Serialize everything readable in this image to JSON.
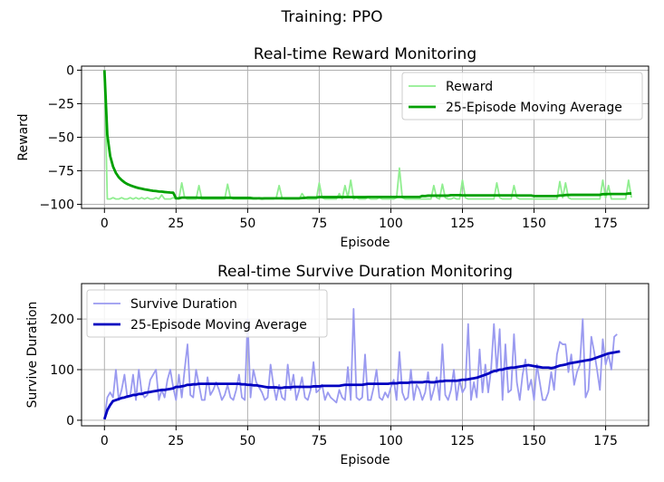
{
  "figure_title": "Training: PPO",
  "chart_data": [
    {
      "type": "line",
      "title": "Real-time Reward Monitoring",
      "xlabel": "Episode",
      "ylabel": "Reward",
      "xlim": [
        -8,
        190
      ],
      "ylim": [
        -103,
        3
      ],
      "xticks": [
        0,
        25,
        50,
        75,
        100,
        125,
        150,
        175
      ],
      "yticks": [
        0,
        -25,
        -50,
        -75,
        -100
      ],
      "grid": true,
      "legend_position": "top-right",
      "series": [
        {
          "name": "Reward",
          "color": "#90ee90",
          "values": [
            0,
            -96,
            -96,
            -95,
            -96,
            -96,
            -95,
            -96,
            -96,
            -95,
            -96,
            -95,
            -96,
            -95,
            -96,
            -95,
            -96,
            -96,
            -95,
            -96,
            -93,
            -96,
            -96,
            -96,
            -95,
            -96,
            -96,
            -84,
            -95,
            -96,
            -96,
            -96,
            -96,
            -86,
            -96,
            -96,
            -96,
            -96,
            -96,
            -96,
            -96,
            -96,
            -96,
            -85,
            -95,
            -96,
            -96,
            -96,
            -96,
            -96,
            -96,
            -96,
            -96,
            -96,
            -95,
            -96,
            -96,
            -96,
            -96,
            -96,
            -95,
            -86,
            -95,
            -96,
            -96,
            -96,
            -96,
            -96,
            -96,
            -92,
            -95,
            -96,
            -96,
            -96,
            -96,
            -84,
            -95,
            -96,
            -96,
            -96,
            -96,
            -96,
            -92,
            -96,
            -86,
            -95,
            -82,
            -96,
            -95,
            -96,
            -96,
            -96,
            -95,
            -96,
            -96,
            -96,
            -95,
            -96,
            -96,
            -96,
            -96,
            -96,
            -95,
            -73,
            -95,
            -96,
            -96,
            -96,
            -96,
            -96,
            -96,
            -96,
            -96,
            -96,
            -96,
            -86,
            -95,
            -96,
            -85,
            -95,
            -96,
            -96,
            -95,
            -96,
            -96,
            -82,
            -95,
            -96,
            -96,
            -96,
            -96,
            -96,
            -96,
            -96,
            -96,
            -96,
            -96,
            -84,
            -95,
            -96,
            -96,
            -96,
            -96,
            -86,
            -95,
            -96,
            -96,
            -96,
            -96,
            -96,
            -96,
            -96,
            -96,
            -96,
            -96,
            -96,
            -96,
            -96,
            -96,
            -83,
            -95,
            -84,
            -95,
            -96,
            -96,
            -96,
            -96,
            -96,
            -96,
            -96,
            -96,
            -96,
            -96,
            -96,
            -82,
            -95,
            -86,
            -96,
            -96,
            -96,
            -96,
            -96,
            -96,
            -82,
            -95
          ]
        },
        {
          "name": "25-Episode Moving Average",
          "color": "#00a000",
          "values": [
            0,
            -48,
            -64,
            -71.8,
            -76.6,
            -79.8,
            -81.9,
            -83.6,
            -84.9,
            -85.8,
            -86.6,
            -87.3,
            -87.9,
            -88.3,
            -88.8,
            -89.2,
            -89.6,
            -89.9,
            -90.1,
            -90.4,
            -90.5,
            -90.8,
            -91,
            -91.2,
            -91.3,
            -95.5,
            -95.5,
            -95,
            -95,
            -95,
            -95,
            -95,
            -95,
            -95.1,
            -95.1,
            -95.1,
            -95.1,
            -95.1,
            -95.1,
            -95.1,
            -95.1,
            -95.1,
            -95.1,
            -95.1,
            -95.1,
            -95.2,
            -95.2,
            -95.2,
            -95.2,
            -95.2,
            -95.2,
            -95.2,
            -95.5,
            -95.5,
            -95.5,
            -95.6,
            -95.5,
            -95.5,
            -95.5,
            -95.5,
            -95.5,
            -95.5,
            -95.5,
            -95.5,
            -95.5,
            -95.5,
            -95.5,
            -95.5,
            -95.5,
            -95.3,
            -95.2,
            -94.9,
            -94.9,
            -94.9,
            -94.9,
            -94.6,
            -94.6,
            -94.6,
            -94.6,
            -94.6,
            -94.6,
            -94.6,
            -94.6,
            -94.6,
            -94.6,
            -94.6,
            -94.6,
            -94.6,
            -94.6,
            -94.6,
            -94.6,
            -94.6,
            -94.5,
            -94.5,
            -94.5,
            -94.5,
            -94.5,
            -94.5,
            -94.5,
            -94.5,
            -94.5,
            -94.5,
            -94.5,
            -94.5,
            -94.5,
            -94.5,
            -94.5,
            -94.5,
            -94.5,
            -94.5,
            -94.5,
            -93.7,
            -93.8,
            -93.5,
            -93.5,
            -93.5,
            -93.5,
            -93.5,
            -93.5,
            -93.5,
            -93.5,
            -93.1,
            -93.1,
            -93.1,
            -93.1,
            -93.3,
            -93.3,
            -93.3,
            -93.3,
            -93.3,
            -93.3,
            -93.3,
            -93.3,
            -93.3,
            -93.3,
            -93.3,
            -93.3,
            -93.3,
            -93.3,
            -93.3,
            -93.3,
            -93.3,
            -93.3,
            -93.3,
            -93.4,
            -93.4,
            -93.4,
            -93.4,
            -93.4,
            -93.4,
            -93.8,
            -93.8,
            -93.8,
            -93.8,
            -93.8,
            -93.8,
            -93.8,
            -93.8,
            -93.8,
            -93.4,
            -93.4,
            -93,
            -93,
            -92.9,
            -92.9,
            -92.9,
            -92.9,
            -92.9,
            -92.9,
            -92.9,
            -92.9,
            -92.9,
            -92.9,
            -92.9,
            -92.4,
            -92.4,
            -92.3,
            -92.3,
            -92.3,
            -92.3,
            -92.3,
            -92.3,
            -92.3,
            -91.9,
            -91.9
          ]
        }
      ]
    },
    {
      "type": "line",
      "title": "Real-time Survive Duration Monitoring",
      "xlabel": "Episode",
      "ylabel": "Survive Duration",
      "xlim": [
        -8,
        190
      ],
      "ylim": [
        -11,
        270
      ],
      "xticks": [
        0,
        25,
        50,
        75,
        100,
        125,
        150,
        175
      ],
      "yticks": [
        0,
        100,
        200
      ],
      "grid": true,
      "legend_position": "top-left",
      "series": [
        {
          "name": "Survive Duration",
          "color": "#9a9af0",
          "values": [
            2,
            45,
            55,
            45,
            100,
            40,
            60,
            90,
            45,
            48,
            90,
            40,
            100,
            55,
            45,
            50,
            80,
            90,
            100,
            40,
            60,
            45,
            80,
            100,
            65,
            40,
            90,
            45,
            100,
            150,
            50,
            45,
            100,
            70,
            40,
            40,
            85,
            50,
            60,
            75,
            60,
            40,
            50,
            70,
            45,
            40,
            60,
            90,
            45,
            40,
            200,
            45,
            100,
            75,
            65,
            55,
            40,
            45,
            110,
            70,
            40,
            70,
            45,
            40,
            110,
            60,
            90,
            40,
            60,
            85,
            45,
            40,
            60,
            115,
            55,
            60,
            70,
            40,
            55,
            45,
            40,
            35,
            60,
            45,
            40,
            105,
            40,
            220,
            45,
            40,
            45,
            130,
            40,
            40,
            65,
            100,
            45,
            40,
            55,
            45,
            65,
            80,
            40,
            135,
            55,
            40,
            45,
            100,
            40,
            70,
            60,
            40,
            55,
            95,
            40,
            60,
            85,
            40,
            150,
            50,
            40,
            60,
            100,
            40,
            80,
            55,
            65,
            190,
            40,
            75,
            45,
            140,
            55,
            110,
            55,
            100,
            190,
            95,
            180,
            40,
            150,
            55,
            60,
            170,
            75,
            40,
            90,
            120,
            60,
            80,
            40,
            110,
            75,
            40,
            40,
            55,
            95,
            60,
            130,
            155,
            150,
            150,
            95,
            130,
            70,
            95,
            110,
            200,
            45,
            60,
            165,
            135,
            100,
            60,
            160,
            110,
            130,
            100,
            165,
            170
          ]
        },
        {
          "name": "25-Episode Moving Average",
          "color": "#0000c0",
          "values": [
            2,
            20,
            30,
            38,
            40,
            42,
            44,
            45,
            47,
            48,
            50,
            50,
            52,
            52,
            54,
            55,
            56,
            57,
            58,
            59,
            60,
            60,
            61,
            62,
            63,
            66,
            66,
            67,
            68,
            70,
            70,
            71,
            71,
            72,
            72,
            72,
            72,
            72,
            72,
            72,
            72,
            72,
            72,
            72,
            72,
            72,
            72,
            72,
            71,
            71,
            70,
            70,
            69,
            69,
            68,
            67,
            66,
            65,
            65,
            65,
            65,
            64,
            64,
            65,
            65,
            65,
            66,
            66,
            66,
            66,
            66,
            66,
            66,
            67,
            67,
            67,
            68,
            68,
            68,
            68,
            68,
            68,
            68,
            69,
            70,
            70,
            70,
            70,
            70,
            70,
            70,
            71,
            72,
            72,
            72,
            72,
            72,
            72,
            72,
            72,
            73,
            73,
            73,
            74,
            74,
            74,
            74,
            75,
            75,
            75,
            75,
            75,
            76,
            76,
            75,
            75,
            76,
            77,
            77,
            78,
            78,
            78,
            78,
            78,
            79,
            80,
            80,
            81,
            82,
            83,
            84,
            86,
            88,
            90,
            92,
            95,
            97,
            98,
            100,
            100,
            102,
            103,
            104,
            104,
            105,
            106,
            107,
            108,
            109,
            108,
            107,
            106,
            105,
            104,
            104,
            104,
            103,
            104,
            106,
            108,
            109,
            110,
            112,
            113,
            114,
            115,
            116,
            117,
            118,
            119,
            120,
            122,
            124,
            126,
            128,
            130,
            132,
            133,
            134,
            135,
            136
          ]
        }
      ]
    }
  ]
}
